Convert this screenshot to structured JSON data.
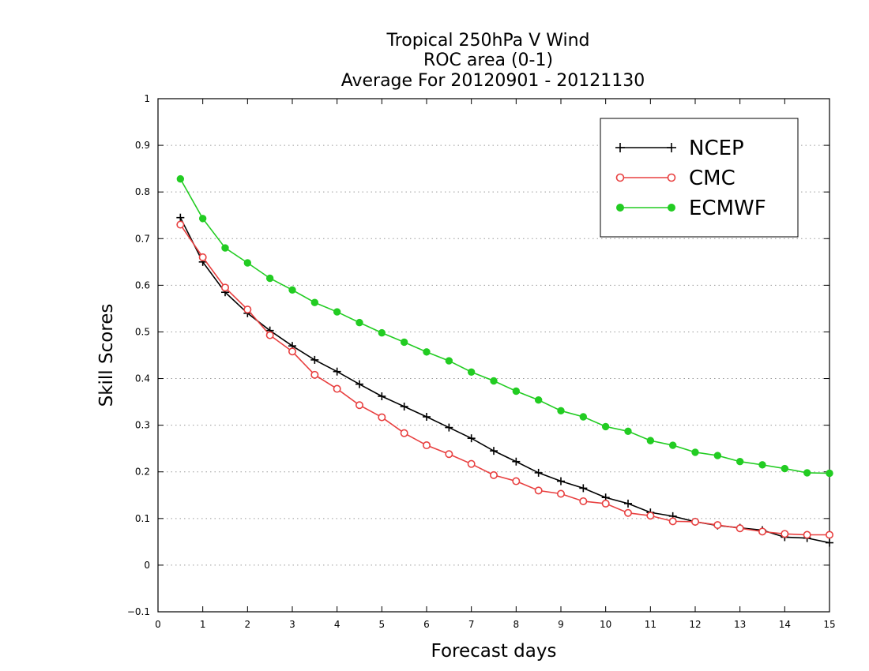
{
  "chart_data": {
    "type": "line",
    "title_lines": [
      "Tropical 250hPa V Wind",
      "ROC area (0-1)",
      "Average For 20120901 - 20121130"
    ],
    "xlabel": "Forecast days",
    "ylabel": "Skill Scores",
    "xlim": [
      0,
      15
    ],
    "ylim": [
      -0.1,
      1
    ],
    "x_ticks": [
      "0",
      "1",
      "2",
      "3",
      "4",
      "5",
      "6",
      "7",
      "8",
      "9",
      "10",
      "11",
      "12",
      "13",
      "14",
      "15"
    ],
    "y_ticks": [
      "−0.1",
      "0",
      "0.1",
      "0.2",
      "0.3",
      "0.4",
      "0.5",
      "0.6",
      "0.7",
      "0.8",
      "0.9",
      "1"
    ],
    "grid": true,
    "legend_position": "top-right",
    "x": [
      0.5,
      1,
      1.5,
      2,
      2.5,
      3,
      3.5,
      4,
      4.5,
      5,
      5.5,
      6,
      6.5,
      7,
      7.5,
      8,
      8.5,
      9,
      9.5,
      10,
      10.5,
      11,
      11.5,
      12,
      12.5,
      13,
      13.5,
      14,
      14.5,
      15
    ],
    "series": [
      {
        "name": "NCEP",
        "color": "#000000",
        "marker": "plus",
        "values": [
          0.745,
          0.65,
          0.585,
          0.54,
          0.503,
          0.47,
          0.44,
          0.415,
          0.388,
          0.362,
          0.34,
          0.318,
          0.295,
          0.272,
          0.245,
          0.222,
          0.198,
          0.18,
          0.165,
          0.145,
          0.132,
          0.113,
          0.105,
          0.093,
          0.085,
          0.08,
          0.075,
          0.06,
          0.058,
          0.048
        ]
      },
      {
        "name": "CMC",
        "color": "#e84040",
        "marker": "open-circle",
        "values": [
          0.73,
          0.66,
          0.595,
          0.548,
          0.493,
          0.458,
          0.408,
          0.378,
          0.343,
          0.317,
          0.283,
          0.257,
          0.238,
          0.217,
          0.193,
          0.18,
          0.16,
          0.153,
          0.137,
          0.132,
          0.112,
          0.106,
          0.094,
          0.093,
          0.086,
          0.079,
          0.072,
          0.067,
          0.065,
          0.065
        ]
      },
      {
        "name": "ECMWF",
        "color": "#22cc22",
        "marker": "filled-circle",
        "values": [
          0.828,
          0.743,
          0.68,
          0.648,
          0.615,
          0.59,
          0.563,
          0.543,
          0.52,
          0.498,
          0.478,
          0.457,
          0.438,
          0.414,
          0.395,
          0.373,
          0.354,
          0.331,
          0.318,
          0.297,
          0.287,
          0.267,
          0.257,
          0.242,
          0.235,
          0.222,
          0.215,
          0.207,
          0.198,
          0.197
        ]
      }
    ]
  }
}
